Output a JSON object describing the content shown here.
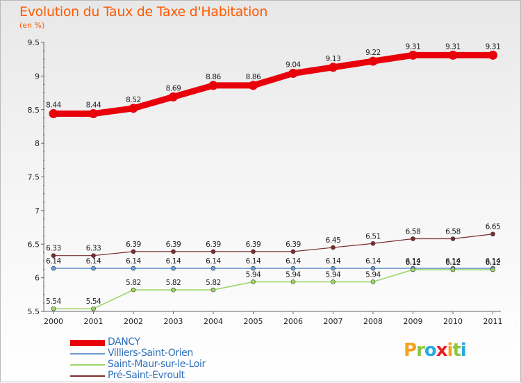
{
  "header": {
    "title": "Evolution du Taux de Taxe d'Habitation",
    "unit": "(en %)"
  },
  "logo": "Proxiti",
  "chart_data": {
    "type": "line",
    "title": "Evolution du Taux de Taxe d'Habitation",
    "subtitle": "(en %)",
    "xlabel": "",
    "ylabel": "",
    "ylim": [
      5.5,
      9.5
    ],
    "yticks": [
      "5.5",
      "6",
      "6.5",
      "7",
      "7.5",
      "8",
      "8.5",
      "9",
      "9.5"
    ],
    "categories": [
      "2000",
      "2001",
      "2002",
      "2003",
      "2004",
      "2005",
      "2006",
      "2007",
      "2008",
      "2009",
      "2010",
      "2011"
    ],
    "series": [
      {
        "name": "DANCY",
        "color": "#e8000a",
        "values": [
          8.44,
          8.44,
          8.52,
          8.69,
          8.86,
          8.86,
          9.04,
          9.13,
          9.22,
          9.31,
          9.31,
          9.31
        ],
        "labels": [
          "8.44",
          "8.44",
          "8.52",
          "8.69",
          "8.86",
          "8.86",
          "9.04",
          "9.13",
          "9.22",
          "9.31",
          "9.31",
          "9.31"
        ]
      },
      {
        "name": "Villiers-Saint-Orien",
        "color": "#6a9bd1",
        "values": [
          6.14,
          6.14,
          6.14,
          6.14,
          6.14,
          6.14,
          6.14,
          6.14,
          6.14,
          6.14,
          6.14,
          6.14
        ],
        "labels": [
          "6.14",
          "6.14",
          "6.14",
          "6.14",
          "6.14",
          "6.14",
          "6.14",
          "6.14",
          "6.14",
          "6.14",
          "6.14",
          "6.14"
        ]
      },
      {
        "name": "Saint-Maur-sur-le-Loir",
        "color": "#9fd66a",
        "values": [
          5.54,
          5.54,
          5.82,
          5.82,
          5.82,
          5.94,
          5.94,
          5.94,
          5.94,
          6.12,
          6.12,
          6.12
        ],
        "labels": [
          "5.54",
          "5.54",
          "5.82",
          "5.82",
          "5.82",
          "5.94",
          "5.94",
          "5.94",
          "5.94",
          "6.12",
          "6.12",
          "6.12"
        ]
      },
      {
        "name": "Pré-Saint-Evroult",
        "color": "#7b2c2c",
        "values": [
          6.33,
          6.33,
          6.39,
          6.39,
          6.39,
          6.39,
          6.39,
          6.45,
          6.51,
          6.58,
          6.58,
          6.65
        ],
        "labels": [
          "6.33",
          "6.33",
          "6.39",
          "6.39",
          "6.39",
          "6.39",
          "6.39",
          "6.45",
          "6.51",
          "6.58",
          "6.58",
          "6.65"
        ]
      }
    ]
  }
}
